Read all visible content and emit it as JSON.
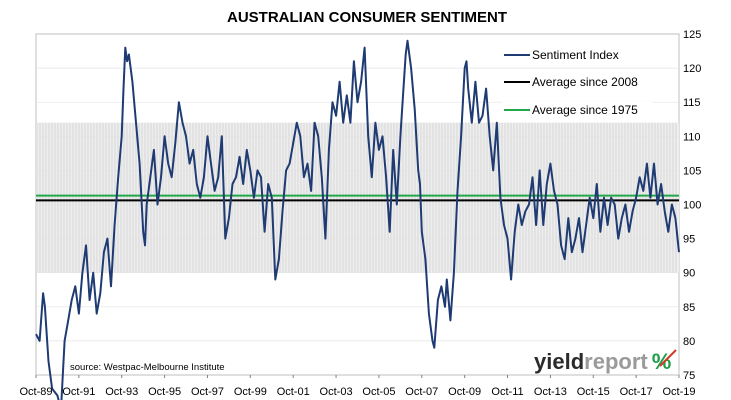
{
  "chart_data": {
    "type": "line",
    "title": "AUSTRALIAN CONSUMER SENTIMENT",
    "xlabel": "",
    "ylabel": "",
    "x_range": [
      "1989-10",
      "2019-10"
    ],
    "ylim": [
      75,
      125
    ],
    "yticks": [
      75,
      80,
      85,
      90,
      95,
      100,
      105,
      110,
      115,
      120,
      125
    ],
    "y_axis_side": "right",
    "xticks": [
      "Oct-89",
      "Oct-91",
      "Oct-93",
      "Oct-95",
      "Oct-97",
      "Oct-99",
      "Oct-01",
      "Oct-03",
      "Oct-05",
      "Oct-07",
      "Oct-09",
      "Oct-11",
      "Oct-13",
      "Oct-15",
      "Oct-17",
      "Oct-19"
    ],
    "legend_position": "top-right",
    "band": {
      "from": 90,
      "to": 112
    },
    "series": [
      {
        "name": "Sentiment Index",
        "color": "#1f3b73",
        "points": [
          [
            "1989-10",
            81
          ],
          [
            "1989-12",
            80
          ],
          [
            "1990-02",
            87
          ],
          [
            "1990-03",
            85
          ],
          [
            "1990-05",
            77
          ],
          [
            "1990-07",
            73
          ],
          [
            "1990-10",
            72
          ],
          [
            "1990-12",
            70
          ],
          [
            "1991-02",
            80
          ],
          [
            "1991-04",
            83
          ],
          [
            "1991-06",
            86
          ],
          [
            "1991-08",
            88
          ],
          [
            "1991-10",
            84
          ],
          [
            "1991-12",
            90
          ],
          [
            "1992-02",
            94
          ],
          [
            "1992-04",
            86
          ],
          [
            "1992-06",
            90
          ],
          [
            "1992-08",
            84
          ],
          [
            "1992-10",
            87
          ],
          [
            "1992-12",
            93
          ],
          [
            "1993-02",
            95
          ],
          [
            "1993-04",
            88
          ],
          [
            "1993-06",
            97
          ],
          [
            "1993-08",
            104
          ],
          [
            "1993-10",
            110
          ],
          [
            "1993-11",
            117
          ],
          [
            "1993-12",
            123
          ],
          [
            "1994-01",
            121
          ],
          [
            "1994-02",
            122
          ],
          [
            "1994-04",
            118
          ],
          [
            "1994-06",
            112
          ],
          [
            "1994-08",
            106
          ],
          [
            "1994-10",
            96
          ],
          [
            "1994-11",
            94
          ],
          [
            "1994-12",
            100
          ],
          [
            "1995-02",
            104
          ],
          [
            "1995-04",
            108
          ],
          [
            "1995-06",
            100
          ],
          [
            "1995-08",
            104
          ],
          [
            "1995-10",
            110
          ],
          [
            "1995-12",
            106
          ],
          [
            "1996-02",
            104
          ],
          [
            "1996-04",
            109
          ],
          [
            "1996-06",
            115
          ],
          [
            "1996-08",
            112
          ],
          [
            "1996-10",
            110
          ],
          [
            "1996-12",
            106
          ],
          [
            "1997-02",
            108
          ],
          [
            "1997-04",
            103
          ],
          [
            "1997-06",
            101
          ],
          [
            "1997-08",
            104
          ],
          [
            "1997-10",
            110
          ],
          [
            "1997-12",
            106
          ],
          [
            "1998-02",
            102
          ],
          [
            "1998-04",
            104
          ],
          [
            "1998-06",
            110
          ],
          [
            "1998-08",
            95
          ],
          [
            "1998-10",
            98
          ],
          [
            "1998-12",
            103
          ],
          [
            "1999-02",
            104
          ],
          [
            "1999-04",
            107
          ],
          [
            "1999-06",
            103
          ],
          [
            "1999-08",
            108
          ],
          [
            "1999-10",
            105
          ],
          [
            "1999-12",
            101
          ],
          [
            "2000-02",
            105
          ],
          [
            "2000-04",
            104
          ],
          [
            "2000-06",
            96
          ],
          [
            "2000-08",
            103
          ],
          [
            "2000-10",
            101
          ],
          [
            "2000-12",
            89
          ],
          [
            "2001-02",
            92
          ],
          [
            "2001-04",
            99
          ],
          [
            "2001-06",
            105
          ],
          [
            "2001-08",
            106
          ],
          [
            "2001-10",
            109
          ],
          [
            "2001-12",
            112
          ],
          [
            "2002-02",
            110
          ],
          [
            "2002-04",
            104
          ],
          [
            "2002-06",
            106
          ],
          [
            "2002-08",
            102
          ],
          [
            "2002-10",
            112
          ],
          [
            "2002-12",
            110
          ],
          [
            "2003-02",
            104
          ],
          [
            "2003-04",
            95
          ],
          [
            "2003-06",
            108
          ],
          [
            "2003-08",
            115
          ],
          [
            "2003-10",
            113
          ],
          [
            "2003-12",
            118
          ],
          [
            "2004-02",
            112
          ],
          [
            "2004-04",
            116
          ],
          [
            "2004-06",
            112
          ],
          [
            "2004-08",
            121
          ],
          [
            "2004-10",
            115
          ],
          [
            "2004-12",
            118
          ],
          [
            "2005-02",
            123
          ],
          [
            "2005-04",
            110
          ],
          [
            "2005-06",
            104
          ],
          [
            "2005-08",
            112
          ],
          [
            "2005-10",
            108
          ],
          [
            "2005-12",
            110
          ],
          [
            "2006-02",
            104
          ],
          [
            "2006-04",
            96
          ],
          [
            "2006-06",
            108
          ],
          [
            "2006-08",
            100
          ],
          [
            "2006-10",
            110
          ],
          [
            "2006-12",
            118
          ],
          [
            "2007-01",
            122
          ],
          [
            "2007-02",
            124
          ],
          [
            "2007-04",
            120
          ],
          [
            "2007-06",
            114
          ],
          [
            "2007-08",
            105
          ],
          [
            "2007-09",
            103
          ],
          [
            "2007-10",
            96
          ],
          [
            "2007-12",
            92
          ],
          [
            "2008-02",
            84
          ],
          [
            "2008-04",
            80
          ],
          [
            "2008-05",
            79
          ],
          [
            "2008-07",
            86
          ],
          [
            "2008-09",
            88
          ],
          [
            "2008-11",
            85
          ],
          [
            "2008-12",
            89
          ],
          [
            "2009-02",
            83
          ],
          [
            "2009-04",
            90
          ],
          [
            "2009-06",
            102
          ],
          [
            "2009-08",
            110
          ],
          [
            "2009-10",
            120
          ],
          [
            "2009-11",
            121
          ],
          [
            "2009-12",
            117
          ],
          [
            "2010-02",
            112
          ],
          [
            "2010-04",
            118
          ],
          [
            "2010-06",
            112
          ],
          [
            "2010-08",
            113
          ],
          [
            "2010-10",
            117
          ],
          [
            "2010-12",
            110
          ],
          [
            "2011-02",
            105
          ],
          [
            "2011-04",
            112
          ],
          [
            "2011-06",
            101
          ],
          [
            "2011-08",
            97
          ],
          [
            "2011-10",
            95
          ],
          [
            "2011-12",
            89
          ],
          [
            "2012-02",
            96
          ],
          [
            "2012-04",
            100
          ],
          [
            "2012-06",
            97
          ],
          [
            "2012-08",
            99
          ],
          [
            "2012-10",
            100
          ],
          [
            "2012-12",
            104
          ],
          [
            "2013-02",
            97
          ],
          [
            "2013-04",
            105
          ],
          [
            "2013-06",
            97
          ],
          [
            "2013-08",
            103
          ],
          [
            "2013-10",
            106
          ],
          [
            "2013-12",
            102
          ],
          [
            "2014-02",
            100
          ],
          [
            "2014-04",
            94
          ],
          [
            "2014-06",
            92
          ],
          [
            "2014-08",
            98
          ],
          [
            "2014-10",
            93
          ],
          [
            "2014-12",
            95
          ],
          [
            "2015-02",
            98
          ],
          [
            "2015-04",
            93
          ],
          [
            "2015-06",
            97
          ],
          [
            "2015-08",
            101
          ],
          [
            "2015-10",
            98
          ],
          [
            "2015-12",
            103
          ],
          [
            "2016-02",
            96
          ],
          [
            "2016-04",
            101
          ],
          [
            "2016-06",
            97
          ],
          [
            "2016-08",
            101
          ],
          [
            "2016-10",
            100
          ],
          [
            "2016-12",
            95
          ],
          [
            "2017-02",
            98
          ],
          [
            "2017-04",
            100
          ],
          [
            "2017-06",
            96
          ],
          [
            "2017-08",
            99
          ],
          [
            "2017-10",
            101
          ],
          [
            "2017-12",
            104
          ],
          [
            "2018-02",
            102
          ],
          [
            "2018-04",
            106
          ],
          [
            "2018-06",
            101
          ],
          [
            "2018-08",
            106
          ],
          [
            "2018-10",
            100
          ],
          [
            "2018-12",
            103
          ],
          [
            "2019-02",
            99
          ],
          [
            "2019-04",
            96
          ],
          [
            "2019-06",
            100
          ],
          [
            "2019-08",
            98
          ],
          [
            "2019-10",
            93
          ]
        ]
      },
      {
        "name": "Average since 2008",
        "color": "#000000",
        "constant": 100.6
      },
      {
        "name": "Average since 1975",
        "color": "#22a84a",
        "constant": 101.3
      }
    ]
  },
  "source": "source: Westpac-Melbourne Institute",
  "logo": {
    "part1": "yield",
    "part2": "report",
    "part3": "%",
    "color_dark": "#2b2b2b",
    "color_light": "#9a9a9a",
    "color_green": "#1d9e48",
    "color_red": "#d23a2a"
  }
}
